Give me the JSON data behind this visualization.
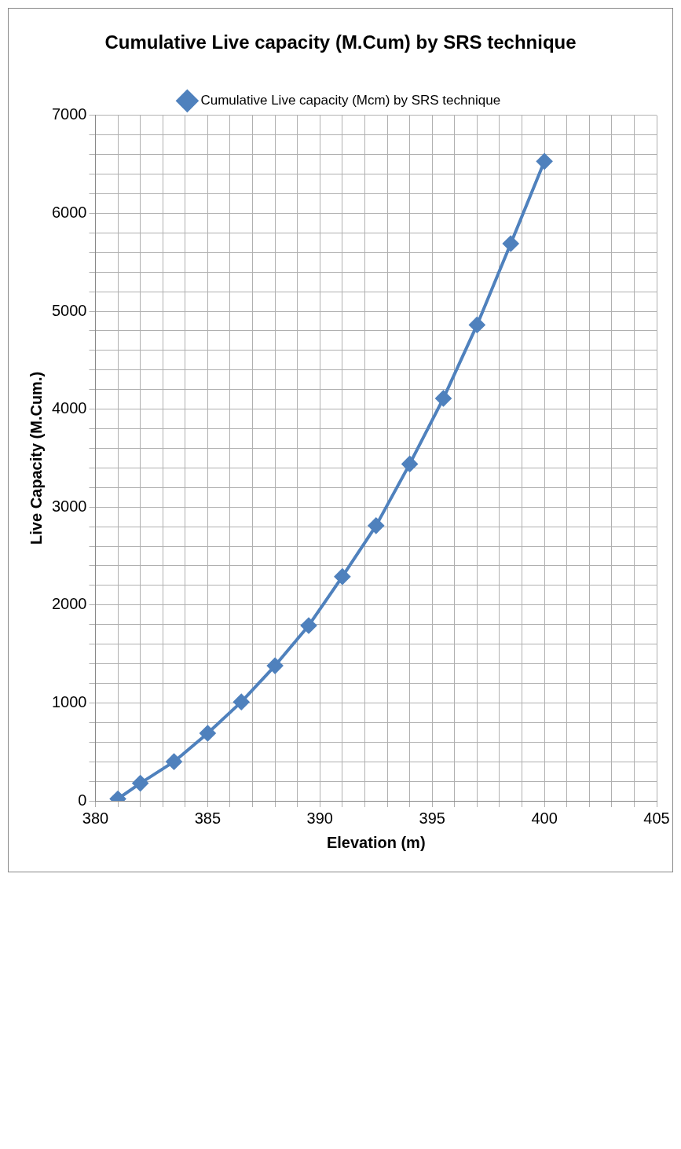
{
  "chart_data": {
    "type": "line",
    "title": "Cumulative Live capacity (M.Cum) by SRS technique",
    "xlabel": "Elevation (m)",
    "ylabel": "Live Capacity (M.Cum.)",
    "x": [
      381,
      382,
      383.5,
      385,
      386.5,
      388,
      389.5,
      391,
      392.5,
      394,
      395.5,
      397,
      398.5,
      400
    ],
    "series": [
      {
        "name": "Cumulative Live capacity (Mcm) by SRS technique",
        "color": "#4f81bd",
        "values": [
          20,
          180,
          400,
          690,
          1010,
          1380,
          1790,
          2290,
          2810,
          3440,
          4110,
          4860,
          5690,
          6530
        ]
      }
    ],
    "xlim": [
      380,
      405
    ],
    "xticks": [
      380,
      {
        "value": 381,
        "label": null
      },
      {
        "value": 382,
        "label": null
      },
      {
        "value": 383,
        "label": null
      },
      {
        "value": 384,
        "label": null
      },
      385,
      {
        "value": 386,
        "label": null
      },
      {
        "value": 387,
        "label": null
      },
      {
        "value": 388,
        "label": null
      },
      {
        "value": 389,
        "label": null
      },
      390,
      {
        "value": 391,
        "label": null
      },
      {
        "value": 392,
        "label": null
      },
      {
        "value": 393,
        "label": null
      },
      {
        "value": 394,
        "label": null
      },
      395,
      {
        "value": 396,
        "label": null
      },
      {
        "value": 397,
        "label": null
      },
      {
        "value": 398,
        "label": null
      },
      {
        "value": 399,
        "label": null
      },
      400,
      {
        "value": 401,
        "label": null
      },
      {
        "value": 402,
        "label": null
      },
      {
        "value": 403,
        "label": null
      },
      {
        "value": 404,
        "label": null
      },
      405
    ],
    "ylim": [
      0,
      7000
    ],
    "yticks": [
      0,
      {
        "value": 200,
        "label": null
      },
      {
        "value": 400,
        "label": null
      },
      {
        "value": 600,
        "label": null
      },
      {
        "value": 800,
        "label": null
      },
      1000,
      {
        "value": 1200,
        "label": null
      },
      {
        "value": 1400,
        "label": null
      },
      {
        "value": 1600,
        "label": null
      },
      {
        "value": 1800,
        "label": null
      },
      2000,
      {
        "value": 2200,
        "label": null
      },
      {
        "value": 2400,
        "label": null
      },
      {
        "value": 2600,
        "label": null
      },
      {
        "value": 2800,
        "label": null
      },
      3000,
      {
        "value": 3200,
        "label": null
      },
      {
        "value": 3400,
        "label": null
      },
      {
        "value": 3600,
        "label": null
      },
      {
        "value": 3800,
        "label": null
      },
      4000,
      {
        "value": 4200,
        "label": null
      },
      {
        "value": 4400,
        "label": null
      },
      {
        "value": 4600,
        "label": null
      },
      {
        "value": 4800,
        "label": null
      },
      5000,
      {
        "value": 5200,
        "label": null
      },
      {
        "value": 5400,
        "label": null
      },
      {
        "value": 5600,
        "label": null
      },
      {
        "value": 5800,
        "label": null
      },
      6000,
      {
        "value": 6200,
        "label": null
      },
      {
        "value": 6400,
        "label": null
      },
      {
        "value": 6600,
        "label": null
      },
      {
        "value": 6800,
        "label": null
      },
      7000
    ],
    "grid": true,
    "legend": "top",
    "marker": "diamond",
    "line_style": "solid"
  }
}
